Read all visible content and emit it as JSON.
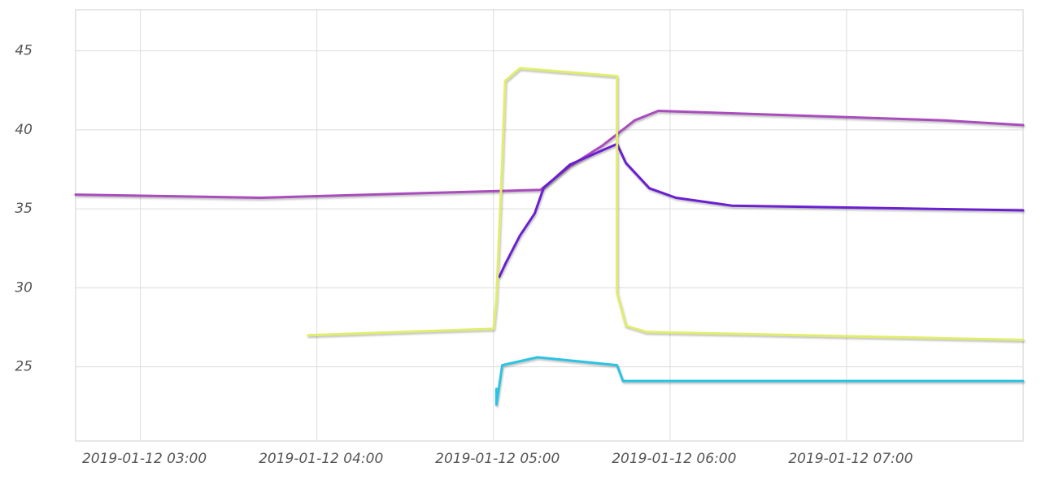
{
  "chart_data": {
    "type": "line",
    "xlim": [
      "2019-01-12 02:38",
      "2019-01-12 08:00"
    ],
    "xticks": [
      "2019-01-12 03:00",
      "2019-01-12 04:00",
      "2019-01-12 05:00",
      "2019-01-12 06:00",
      "2019-01-12 07:00"
    ],
    "ylim": [
      20.3,
      47.6
    ],
    "yticks": [
      25,
      30,
      35,
      40,
      45
    ],
    "grid": true,
    "series": [
      {
        "color": "#a94cbd",
        "x": [
          "2019-01-12 02:38",
          "2019-01-12 03:41",
          "2019-01-12 04:00",
          "2019-01-12 05:16",
          "2019-01-12 05:26",
          "2019-01-12 05:37",
          "2019-01-12 05:48",
          "2019-01-12 05:56",
          "2019-01-12 07:33",
          "2019-01-12 08:00"
        ],
        "values": [
          35.9,
          35.7,
          35.8,
          36.2,
          37.7,
          39.0,
          40.6,
          41.2,
          40.6,
          40.3
        ]
      },
      {
        "color": "#6a1fd1",
        "x": [
          "2019-01-12 05:02",
          "2019-01-12 05:04",
          "2019-01-12 05:09",
          "2019-01-12 05:14",
          "2019-01-12 05:17",
          "2019-01-12 05:26",
          "2019-01-12 05:37",
          "2019-01-12 05:42",
          "2019-01-12 05:45",
          "2019-01-12 05:53",
          "2019-01-12 06:02",
          "2019-01-12 06:21",
          "2019-01-12 08:00"
        ],
        "values": [
          30.7,
          31.5,
          33.3,
          34.7,
          36.3,
          37.8,
          38.7,
          39.1,
          37.9,
          36.3,
          35.7,
          35.2,
          34.9
        ]
      },
      {
        "color": "#e1ee6c",
        "x": [
          "2019-01-12 03:57",
          "2019-01-12 05:00",
          "2019-01-12 05:01",
          "2019-01-12 05:03",
          "2019-01-12 05:04",
          "2019-01-12 05:09",
          "2019-01-12 05:42",
          "2019-01-12 05:42",
          "2019-01-12 05:45",
          "2019-01-12 05:52",
          "2019-01-12 08:00"
        ],
        "values": [
          27.0,
          27.4,
          29.2,
          38.0,
          43.1,
          43.9,
          43.4,
          29.7,
          27.6,
          27.2,
          26.7
        ]
      },
      {
        "color": "#2bc3e3",
        "x": [
          "2019-01-12 05:01",
          "2019-01-12 05:01",
          "2019-01-12 05:03",
          "2019-01-12 05:15",
          "2019-01-12 05:42",
          "2019-01-12 05:44",
          "2019-01-12 08:00"
        ],
        "values": [
          23.6,
          22.6,
          25.1,
          25.6,
          25.1,
          24.1,
          24.1
        ]
      }
    ]
  }
}
